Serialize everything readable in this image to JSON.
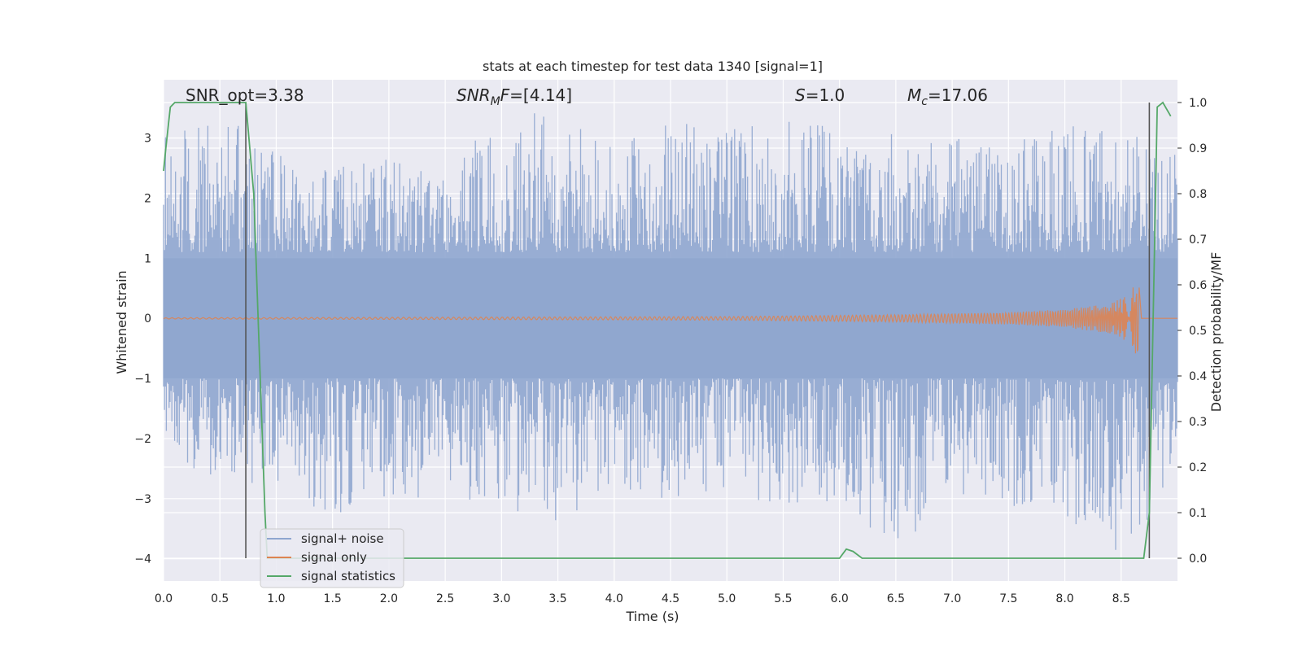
{
  "chart_data": {
    "type": "line",
    "title": "stats at each timestep for test data 1340 [signal=1]",
    "xlabel": "Time (s)",
    "ylabel": "Whitened strain",
    "y2label": "Detection probability/MF",
    "xlim": [
      0,
      9
    ],
    "ylim": [
      -4.37,
      3.97
    ],
    "y2lim": [
      -0.05,
      1.05
    ],
    "grid": true,
    "x_ticks": [
      "0.0",
      "0.5",
      "1.0",
      "1.5",
      "2.0",
      "2.5",
      "3.0",
      "3.5",
      "4.0",
      "4.5",
      "5.0",
      "5.5",
      "6.0",
      "6.5",
      "7.0",
      "7.5",
      "8.0",
      "8.5"
    ],
    "y_ticks": [
      "3",
      "2",
      "1",
      "0",
      "−1",
      "−2",
      "−3",
      "−4"
    ],
    "y2_ticks": [
      "1.0",
      "0.9",
      "0.8",
      "0.7",
      "0.6",
      "0.5",
      "0.4",
      "0.3",
      "0.2",
      "0.1",
      "0.0"
    ],
    "annotations": {
      "snr_opt": "SNR_opt=3.38",
      "snr_mf_main": "SNR",
      "snr_mf_sub": "M",
      "snr_mf_rest": "F=[4.14]",
      "s_sym": "S",
      "s_val": "=1.0",
      "mc_sym": "M",
      "mc_sub": "c",
      "mc_val": "=17.06"
    },
    "legend": {
      "placement": "lower-left",
      "entries": [
        "signal+ noise",
        "signal only",
        "signal statistics"
      ]
    },
    "colors": {
      "noise": "#8fa6cf",
      "signal": "#dd8452",
      "stat": "#55a868",
      "vline": "#555555",
      "plot_bg": "#eaeaf2",
      "grid": "#ffffff"
    },
    "series": [
      {
        "name": "signal statistics",
        "axis": "y2",
        "x": [
          0.0,
          0.02,
          0.06,
          0.1,
          0.7,
          0.73,
          0.8,
          0.9,
          0.92,
          6.0,
          6.06,
          6.12,
          6.2,
          8.7,
          8.75,
          8.79,
          8.82,
          8.87,
          8.94
        ],
        "values": [
          0.85,
          0.9,
          0.99,
          1.0,
          1.0,
          1.0,
          0.8,
          0.1,
          0.0,
          0.0,
          0.02,
          0.015,
          0.0,
          0.0,
          0.1,
          0.6,
          0.99,
          1.0,
          0.97
        ]
      },
      {
        "name": "signal only",
        "axis": "y",
        "description_envelope": "chirp growing to peak amplitude 0.75 at 8.65 s",
        "x": [
          0,
          5.0,
          6.5,
          7.5,
          8.0,
          8.4,
          8.55,
          8.62,
          8.66
        ],
        "values": [
          0.01,
          0.03,
          0.06,
          0.1,
          0.15,
          0.25,
          0.38,
          0.55,
          0.75
        ]
      },
      {
        "name": "signal+ noise",
        "axis": "y",
        "envelope_x": [
          0.0,
          0.5,
          1.0,
          1.5,
          2.0,
          2.5,
          3.0,
          3.5,
          4.0,
          4.5,
          5.0,
          5.5,
          6.0,
          6.5,
          7.0,
          7.5,
          8.0,
          8.5,
          9.0
        ],
        "envelope_max": [
          3.0,
          3.4,
          2.8,
          2.5,
          2.7,
          2.6,
          3.5,
          3.4,
          2.9,
          3.3,
          3.2,
          3.3,
          3.2,
          3.1,
          3.0,
          2.9,
          3.2,
          3.4,
          2.7
        ],
        "envelope_min": [
          -2.3,
          -2.7,
          -2.8,
          -3.3,
          -3.1,
          -2.9,
          -3.2,
          -3.4,
          -2.8,
          -3.1,
          -3.0,
          -3.3,
          -3.0,
          -3.9,
          -3.0,
          -3.1,
          -3.3,
          -4.0,
          -2.8
        ]
      }
    ],
    "vlines_x": [
      0.73,
      8.75
    ]
  }
}
